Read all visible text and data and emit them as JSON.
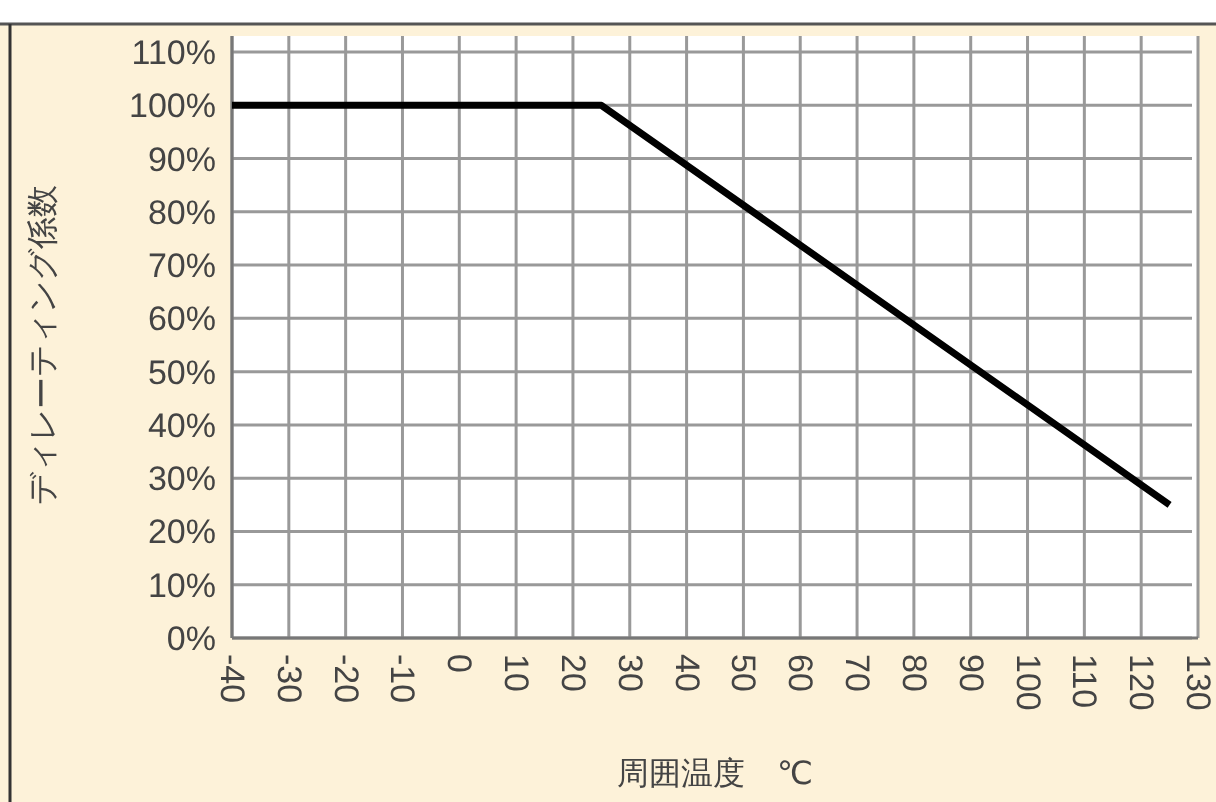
{
  "chart_data": {
    "type": "line",
    "xlabel": "周囲温度　℃",
    "ylabel": "ディレーティング係数",
    "x": [
      -40,
      25,
      125
    ],
    "series": [
      {
        "color": "#000000",
        "values": [
          100,
          100,
          25
        ]
      }
    ],
    "xlim": [
      -40,
      130
    ],
    "ylim": [
      0,
      110
    ],
    "xticks": [
      -40,
      -30,
      -20,
      -10,
      0,
      10,
      20,
      30,
      40,
      50,
      60,
      70,
      80,
      90,
      100,
      110,
      120,
      130
    ],
    "yticks": [
      {
        "value": 0,
        "label": "0%"
      },
      {
        "value": 10,
        "label": "10%"
      },
      {
        "value": 20,
        "label": "20%"
      },
      {
        "value": 30,
        "label": "30%"
      },
      {
        "value": 40,
        "label": "40%"
      },
      {
        "value": 50,
        "label": "50%"
      },
      {
        "value": 60,
        "label": "60%"
      },
      {
        "value": 70,
        "label": "70%"
      },
      {
        "value": 80,
        "label": "80%"
      },
      {
        "value": 90,
        "label": "90%"
      },
      {
        "value": 100,
        "label": "100%"
      },
      {
        "value": 110,
        "label": "110%"
      }
    ],
    "grid": true
  }
}
